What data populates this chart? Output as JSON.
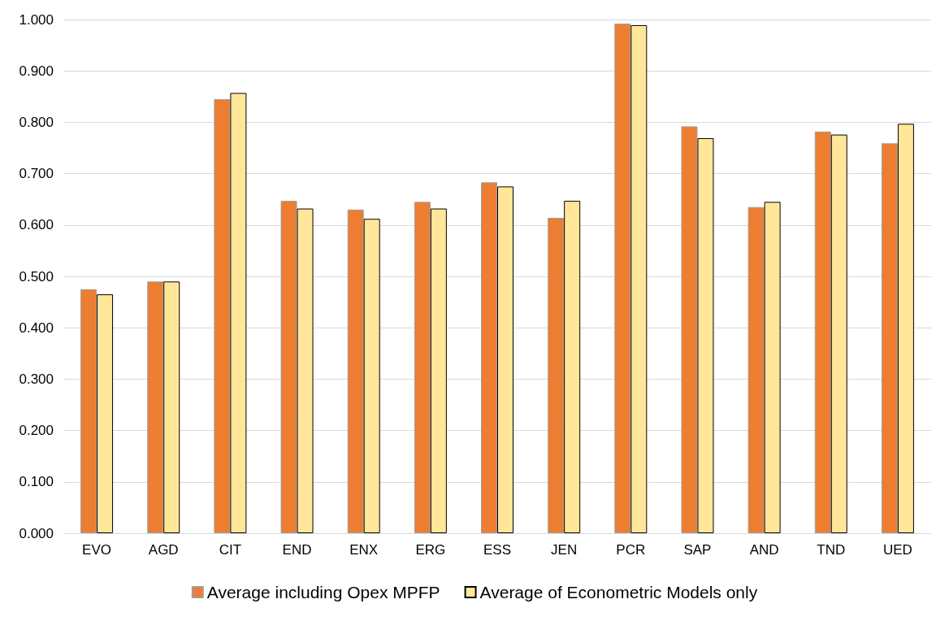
{
  "chart_data": {
    "type": "bar",
    "categories": [
      "EVO",
      "AGD",
      "CIT",
      "END",
      "ENX",
      "ERG",
      "ESS",
      "JEN",
      "PCR",
      "SAP",
      "AND",
      "TND",
      "UED"
    ],
    "series": [
      {
        "name": "Average including Opex MPFP",
        "color": "#ed7d31",
        "values": [
          0.475,
          0.49,
          0.845,
          0.647,
          0.63,
          0.645,
          0.683,
          0.614,
          0.992,
          0.792,
          0.635,
          0.782,
          0.759
        ]
      },
      {
        "name": "Average of Econometric Models only",
        "color": "#ffe699",
        "values": [
          0.465,
          0.49,
          0.857,
          0.632,
          0.612,
          0.632,
          0.675,
          0.647,
          0.989,
          0.769,
          0.645,
          0.776,
          0.797
        ]
      }
    ],
    "ylim": [
      0,
      1
    ],
    "yticks": [
      {
        "value": 0,
        "label": "0.000"
      },
      {
        "value": 0.1,
        "label": "0.100"
      },
      {
        "value": 0.2,
        "label": "0.200"
      },
      {
        "value": 0.3,
        "label": "0.300"
      },
      {
        "value": 0.4,
        "label": "0.400"
      },
      {
        "value": 0.5,
        "label": "0.500"
      },
      {
        "value": 0.6,
        "label": "0.600"
      },
      {
        "value": 0.7,
        "label": "0.700"
      },
      {
        "value": 0.8,
        "label": "0.800"
      },
      {
        "value": 0.9,
        "label": "0.900"
      },
      {
        "value": 1,
        "label": "1.000"
      }
    ],
    "grid": "y",
    "legend": "bottom"
  }
}
